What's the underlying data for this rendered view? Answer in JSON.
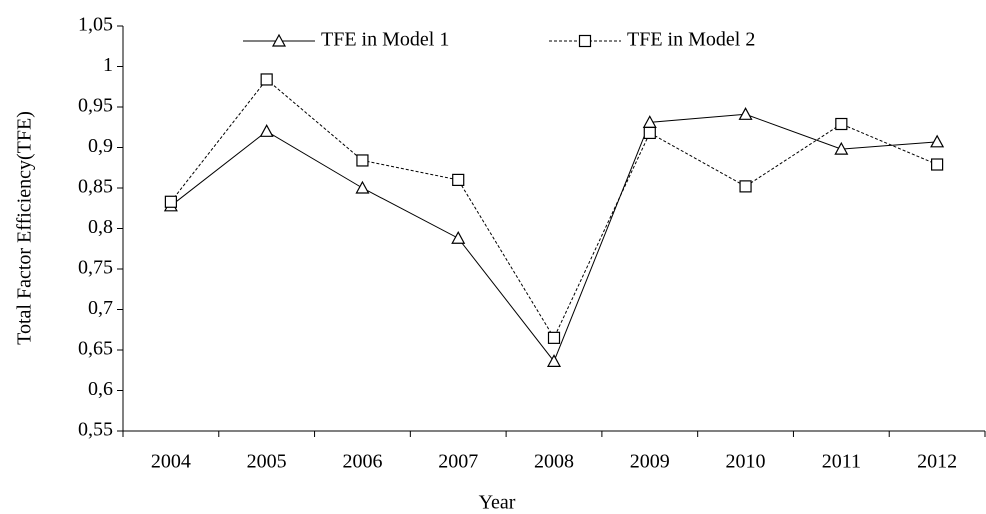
{
  "chart_data": {
    "type": "line",
    "x_label": "Year",
    "y_label": "Total Factor Efficiency(TFE)",
    "categories": [
      "2004",
      "2005",
      "2006",
      "2007",
      "2008",
      "2009",
      "2010",
      "2011",
      "2012"
    ],
    "series": [
      {
        "name": "TFE in Model 1",
        "color": "#000000",
        "line_style": "solid",
        "marker": "triangle",
        "values": [
          0.828,
          0.92,
          0.85,
          0.788,
          0.636,
          0.931,
          0.941,
          0.898,
          0.907
        ]
      },
      {
        "name": "TFE in Model 2",
        "color": "#000000",
        "line_style": "dashed",
        "marker": "square",
        "values": [
          0.833,
          0.984,
          0.884,
          0.86,
          0.665,
          0.918,
          0.852,
          0.929,
          0.879
        ]
      }
    ],
    "ylim": [
      0.55,
      1.05
    ],
    "yticks": [
      {
        "value": 0.55,
        "label": "0,55"
      },
      {
        "value": 0.6,
        "label": "0,6"
      },
      {
        "value": 0.65,
        "label": "0,65"
      },
      {
        "value": 0.7,
        "label": "0,7"
      },
      {
        "value": 0.75,
        "label": "0,75"
      },
      {
        "value": 0.8,
        "label": "0,8"
      },
      {
        "value": 0.85,
        "label": "0,85"
      },
      {
        "value": 0.9,
        "label": "0,9"
      },
      {
        "value": 0.95,
        "label": "0,95"
      },
      1,
      {
        "value": 1.05,
        "label": "1,05"
      }
    ],
    "legend": "top",
    "grid": false
  }
}
